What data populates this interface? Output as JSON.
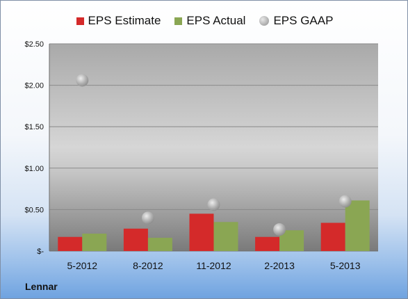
{
  "chart_data": {
    "type": "bar",
    "categories": [
      "5-2012",
      "8-2012",
      "11-2012",
      "2-2013",
      "5-2013"
    ],
    "series": [
      {
        "name": "EPS Estimate",
        "kind": "bar",
        "color": "#d42a2a",
        "values": [
          0.17,
          0.27,
          0.45,
          0.17,
          0.34
        ]
      },
      {
        "name": "EPS Actual",
        "kind": "bar",
        "color": "#8aa653",
        "values": [
          0.21,
          0.16,
          0.35,
          0.25,
          0.61
        ]
      },
      {
        "name": "EPS GAAP",
        "kind": "scatter",
        "color": "#b5b5b5",
        "values": [
          2.06,
          0.4,
          0.56,
          0.26,
          0.6
        ]
      }
    ],
    "ylim": [
      0,
      2.5
    ],
    "yticks": [
      0,
      0.5,
      1.0,
      1.5,
      2.0,
      2.5
    ],
    "ytick_labels": [
      "$-",
      "$0.50",
      "$1.00",
      "$1.50",
      "$2.00",
      "$2.50"
    ],
    "grid": true,
    "legend_position": "top"
  },
  "footer": {
    "brand": "Lennar"
  }
}
